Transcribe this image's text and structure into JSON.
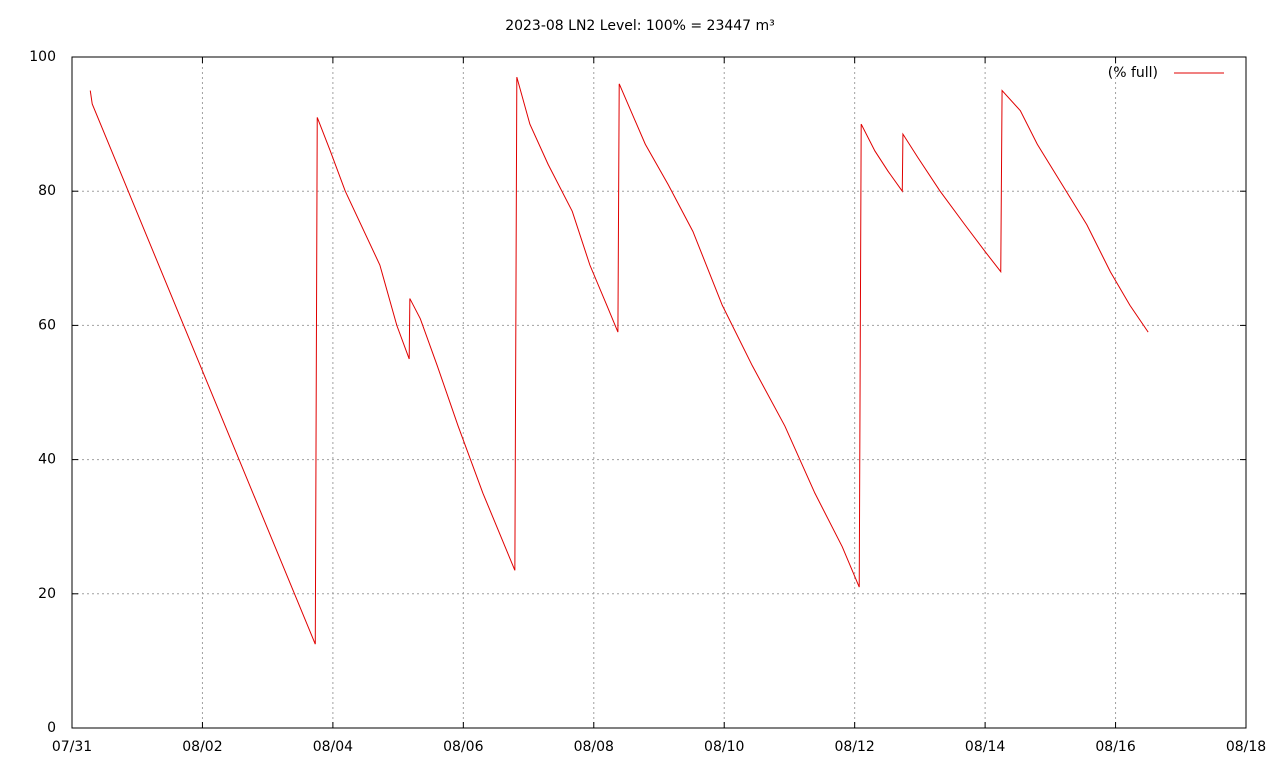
{
  "chart_data": {
    "type": "line",
    "title": "2023-08 LN2 Level: 100% = 23447 m³",
    "x": [
      0.28,
      0.31,
      3.73,
      3.76,
      3.96,
      4.19,
      4.72,
      4.98,
      5.17,
      5.18,
      5.34,
      5.6,
      5.92,
      6.3,
      6.79,
      6.82,
      7.02,
      7.3,
      7.67,
      7.94,
      8.2,
      8.37,
      8.39,
      8.79,
      9.14,
      9.52,
      9.97,
      10.43,
      10.93,
      11.39,
      11.81,
      12.07,
      12.1,
      12.31,
      12.51,
      12.73,
      12.74,
      12.97,
      13.31,
      13.69,
      14.0,
      14.24,
      14.26,
      14.54,
      14.8,
      15.18,
      15.56,
      15.92,
      16.22,
      16.5
    ],
    "series": [
      {
        "name": "(% full)",
        "color": "#e00000",
        "values": [
          95,
          93,
          12.5,
          91,
          86,
          80,
          69,
          60,
          55,
          64,
          61,
          54,
          45,
          35,
          23.5,
          97,
          90,
          84,
          77,
          69,
          63,
          59,
          96,
          87,
          81,
          74,
          63,
          54,
          45,
          35,
          27,
          21,
          90,
          86,
          83,
          80,
          88.5,
          85,
          80,
          75,
          71,
          68,
          95,
          92,
          87,
          81,
          75,
          68,
          63,
          59
        ]
      }
    ],
    "xlim": [
      0,
      18
    ],
    "xticks": [
      {
        "value": 0,
        "label": "07/31"
      },
      {
        "value": 2,
        "label": "08/02"
      },
      {
        "value": 4,
        "label": "08/04"
      },
      {
        "value": 6,
        "label": "08/06"
      },
      {
        "value": 8,
        "label": "08/08"
      },
      {
        "value": 10,
        "label": "08/10"
      },
      {
        "value": 12,
        "label": "08/12"
      },
      {
        "value": 14,
        "label": "08/14"
      },
      {
        "value": 16,
        "label": "08/16"
      },
      {
        "value": 18,
        "label": "08/18"
      }
    ],
    "ylim": [
      0,
      100
    ],
    "yticks": [
      0,
      20,
      40,
      60,
      80,
      100
    ],
    "grid": true,
    "legend": "top-right"
  }
}
